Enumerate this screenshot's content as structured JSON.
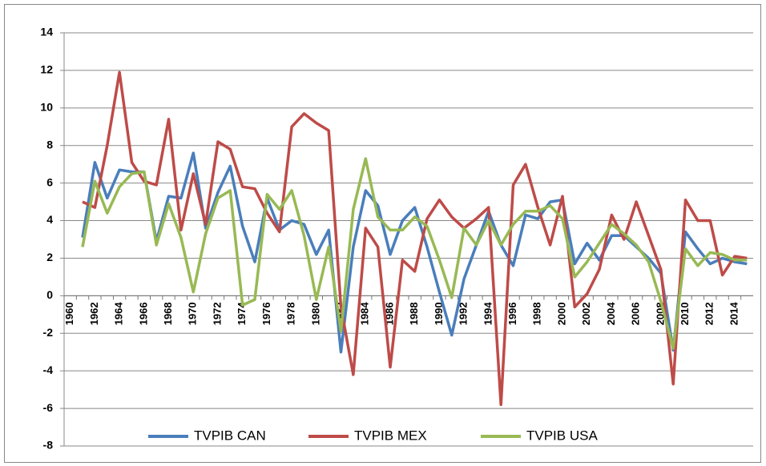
{
  "chart_data": {
    "type": "line",
    "categories": [
      "1960",
      null,
      "1962",
      null,
      "1964",
      null,
      "1966",
      null,
      "1968",
      null,
      "1970",
      null,
      "1972",
      null,
      "1974",
      null,
      "1976",
      null,
      "1978",
      null,
      "1980",
      null,
      "1982",
      null,
      "1984",
      null,
      "1986",
      null,
      "1988",
      null,
      "1990",
      null,
      "1992",
      null,
      "1994",
      null,
      "1996",
      null,
      "1998",
      null,
      "2000",
      null,
      "2002",
      null,
      "2004",
      null,
      "2006",
      null,
      "2008",
      null,
      "2010",
      null,
      "2012",
      null,
      "2014",
      null
    ],
    "series": [
      {
        "name": "TVPIB CAN",
        "color": "#4a7ebb",
        "values": [
          null,
          3.1,
          7.1,
          5.2,
          6.7,
          6.6,
          6.6,
          2.9,
          5.3,
          5.2,
          7.6,
          3.6,
          5.5,
          6.9,
          3.7,
          1.8,
          5.2,
          3.5,
          4.0,
          3.8,
          2.2,
          3.5,
          -3.0,
          2.6,
          5.6,
          4.8,
          2.2,
          4.0,
          4.7,
          2.6,
          0.2,
          -2.1,
          0.9,
          2.7,
          4.5,
          2.7,
          1.6,
          4.3,
          4.1,
          5.0,
          5.1,
          1.7,
          2.8,
          1.9,
          3.2,
          3.2,
          2.6,
          2.0,
          1.2,
          -2.9,
          3.4,
          2.5,
          1.7,
          2.0,
          1.8,
          1.7
        ]
      },
      {
        "name": "TVPIB MEX",
        "color": "#be4b48",
        "values": [
          null,
          5.0,
          4.7,
          8.0,
          11.9,
          7.1,
          6.1,
          5.9,
          9.4,
          3.5,
          6.5,
          3.8,
          8.2,
          7.8,
          5.8,
          5.7,
          4.4,
          3.4,
          9.0,
          9.7,
          9.2,
          8.8,
          -0.6,
          -4.2,
          3.6,
          2.6,
          -3.8,
          1.9,
          1.3,
          4.1,
          5.1,
          4.2,
          3.6,
          4.1,
          4.7,
          -5.8,
          5.9,
          7.0,
          4.7,
          2.7,
          5.3,
          -0.6,
          0.1,
          1.4,
          4.3,
          3.0,
          5.0,
          3.2,
          1.4,
          -4.7,
          5.1,
          4.0,
          4.0,
          1.1,
          2.1,
          2.0
        ]
      },
      {
        "name": "TVPIB USA",
        "color": "#98b954",
        "values": [
          null,
          2.6,
          6.1,
          4.4,
          5.8,
          6.5,
          6.6,
          2.7,
          4.9,
          3.1,
          0.2,
          3.3,
          5.2,
          5.6,
          -0.5,
          -0.2,
          5.4,
          4.6,
          5.6,
          3.2,
          -0.2,
          2.6,
          -1.9,
          4.6,
          7.3,
          4.2,
          3.5,
          3.5,
          4.2,
          3.7,
          1.9,
          -0.1,
          3.6,
          2.7,
          4.0,
          2.7,
          3.8,
          4.5,
          4.5,
          4.8,
          4.1,
          1.0,
          1.8,
          2.8,
          3.8,
          3.3,
          2.7,
          1.8,
          -0.3,
          -2.8,
          2.5,
          1.6,
          2.3,
          2.2,
          1.9,
          1.9
        ]
      }
    ],
    "ylim": [
      -8,
      14
    ],
    "yticks": [
      -8,
      -6,
      -4,
      -2,
      0,
      2,
      4,
      6,
      8,
      10,
      12,
      14
    ],
    "grid": true,
    "legend": "bottom"
  }
}
